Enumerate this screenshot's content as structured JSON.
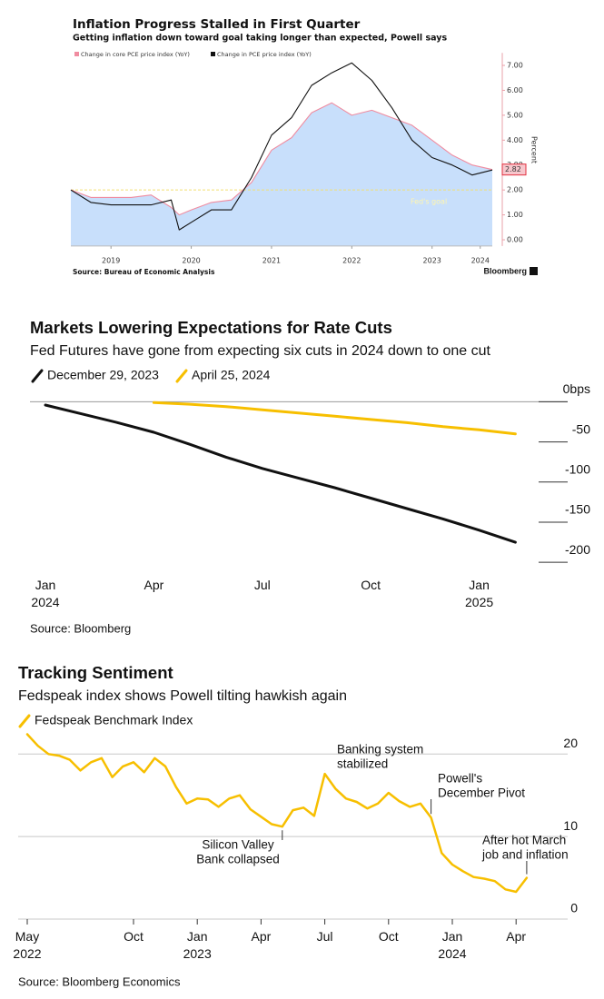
{
  "chart_data": [
    {
      "type": "area_line",
      "title": "Inflation Progress Stalled in First Quarter",
      "subtitle": "Getting inflation down toward goal taking longer than expected, Powell says",
      "y_label": "Percent",
      "source": "Source: Bureau of Economic Analysis",
      "brand": "Bloomberg",
      "x": [
        2019,
        2019.25,
        2019.5,
        2019.75,
        2020,
        2020.25,
        2020.35,
        2020.5,
        2020.75,
        2021,
        2021.25,
        2021.5,
        2021.75,
        2022,
        2022.25,
        2022.5,
        2022.75,
        2023,
        2023.25,
        2023.5,
        2023.75,
        2024,
        2024.25
      ],
      "series": [
        {
          "name": "Change in core PCE price index (YoY)",
          "color": "#f08ca0",
          "values": [
            2.0,
            1.7,
            1.7,
            1.7,
            1.8,
            1.3,
            1.0,
            1.2,
            1.5,
            1.6,
            2.3,
            3.6,
            4.1,
            5.1,
            5.5,
            5.0,
            5.2,
            4.9,
            4.6,
            4.0,
            3.4,
            3.0,
            2.82
          ],
          "value_labels": [
            null,
            null,
            null,
            null,
            null,
            null,
            null,
            null,
            null,
            null,
            null,
            null,
            null,
            null,
            null,
            null,
            null,
            null,
            null,
            null,
            null,
            null,
            "2.82"
          ]
        },
        {
          "name": "Change in PCE price index (YoY)",
          "color": "#111111",
          "values": [
            2.0,
            1.5,
            1.4,
            1.4,
            1.4,
            1.6,
            0.4,
            0.7,
            1.2,
            1.2,
            2.5,
            4.2,
            4.9,
            6.2,
            6.7,
            7.1,
            6.4,
            5.3,
            4.0,
            3.3,
            3.0,
            2.6,
            2.8
          ]
        }
      ],
      "area_color": "#c8dffb",
      "target": 2,
      "target_label": "Fed's goal",
      "xlim": [
        2019,
        2024.25
      ],
      "xticks": [
        {
          "value": 2019.5,
          "label": "2019"
        },
        {
          "value": 2020.5,
          "label": "2020"
        },
        {
          "value": 2021.5,
          "label": "2021"
        },
        {
          "value": 2022.5,
          "label": "2022"
        },
        {
          "value": 2023.5,
          "label": "2023"
        },
        {
          "value": 2024.1,
          "label": "2024"
        }
      ],
      "ylim": [
        -0.25,
        7.5
      ],
      "yticks": [
        {
          "value": 0,
          "label": "0.00"
        },
        {
          "value": 1,
          "label": "1.00"
        },
        {
          "value": 2,
          "label": "2.00"
        },
        {
          "value": 3,
          "label": "3.00"
        },
        {
          "value": 4,
          "label": "4.00"
        },
        {
          "value": 5,
          "label": "5.00"
        },
        {
          "value": 6,
          "label": "6.00"
        },
        {
          "value": 7,
          "label": "7.00"
        }
      ]
    },
    {
      "type": "line",
      "title": "Markets Lowering Expectations for Rate Cuts",
      "subtitle": "Fed Futures have gone from expecting six cuts in 2024 down to one cut",
      "source": "Source: Bloomberg",
      "categories": [
        "Jan 2024",
        null,
        null,
        "Apr",
        null,
        null,
        "Jul",
        null,
        null,
        "Oct",
        null,
        null,
        "Jan 2025",
        null
      ],
      "series": [
        {
          "name": "December 29, 2023",
          "color": "#111111",
          "values": [
            -4,
            -15,
            -26,
            -38,
            -53,
            -69,
            -83,
            -95,
            -107,
            -120,
            -133,
            -146,
            -160,
            -175
          ]
        },
        {
          "name": "April 25, 2024",
          "color": "#f7bf00",
          "values": [
            null,
            null,
            null,
            -1,
            -3,
            -6,
            -10,
            -14,
            -18,
            -22,
            -26,
            -31,
            -35,
            -40
          ]
        }
      ],
      "ylim": [
        -210,
        5
      ],
      "yticks": [
        {
          "value": 0,
          "label": "0bps"
        },
        -50,
        -100,
        -150,
        -200
      ],
      "grid": false
    },
    {
      "type": "line",
      "title": "Tracking Sentiment",
      "subtitle": "Fedspeak index shows Powell tilting hawkish again",
      "source": "Source: Bloomberg Economics",
      "categories": [
        "May 2022",
        null,
        null,
        null,
        null,
        null,
        null,
        null,
        null,
        null,
        "Oct",
        null,
        null,
        null,
        null,
        null,
        "Jan 2023",
        null,
        null,
        null,
        null,
        null,
        "Apr",
        null,
        null,
        null,
        null,
        null,
        "Jul",
        null,
        null,
        null,
        null,
        null,
        "Oct",
        null,
        null,
        null,
        null,
        null,
        "Jan 2024",
        null,
        null,
        null,
        null,
        null,
        "Apr",
        null
      ],
      "series": [
        {
          "name": "Fedspeak Benchmark Index",
          "color": "#f7bf00",
          "values": [
            22.4,
            21,
            20,
            19.8,
            19.3,
            18,
            19,
            19.5,
            17.2,
            18.5,
            19,
            17.8,
            19.5,
            18.5,
            16,
            14,
            14.6,
            14.5,
            13.6,
            14.6,
            15,
            13.3,
            12.4,
            11.5,
            11.2,
            13.2,
            13.5,
            12.5,
            17.6,
            15.8,
            14.6,
            14.2,
            13.4,
            14,
            15.3,
            14.3,
            13.6,
            14,
            12.3,
            8,
            6.6,
            5.8,
            5.1,
            4.9,
            4.6,
            3.6,
            3.3,
            5
          ]
        }
      ],
      "ylim": [
        0,
        23
      ],
      "yticks": [
        0,
        10,
        20
      ],
      "grid": true,
      "annotations": [
        {
          "text": [
            "Silicon Valley",
            "Bank collapsed"
          ]
        },
        {
          "text": [
            "Banking system",
            "stabilized"
          ]
        },
        {
          "text": [
            "Powell's",
            "December Pivot"
          ]
        },
        {
          "text": [
            "After hot March",
            "job and inflation"
          ]
        }
      ]
    }
  ]
}
